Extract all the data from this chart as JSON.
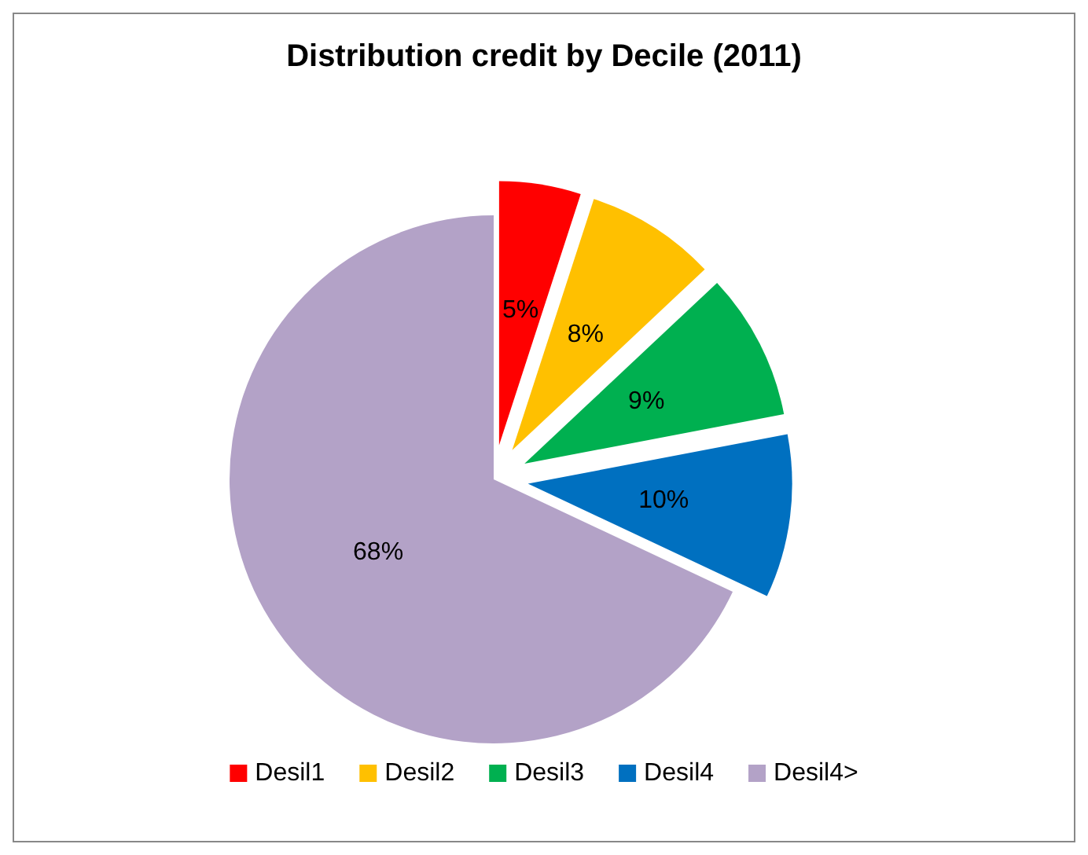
{
  "chart_data": {
    "type": "pie",
    "title": "Distribution credit by Decile (2011)",
    "categories": [
      "Desil1",
      "Desil2",
      "Desil3",
      "Desil4",
      "Desil4>"
    ],
    "values": [
      5,
      8,
      9,
      10,
      68
    ],
    "value_labels": [
      "5%",
      "8%",
      "9%",
      "10%",
      "68%"
    ],
    "colors": [
      "#ff0000",
      "#ffc000",
      "#00b050",
      "#0070c0",
      "#b3a2c7"
    ],
    "legend": "bottom"
  }
}
